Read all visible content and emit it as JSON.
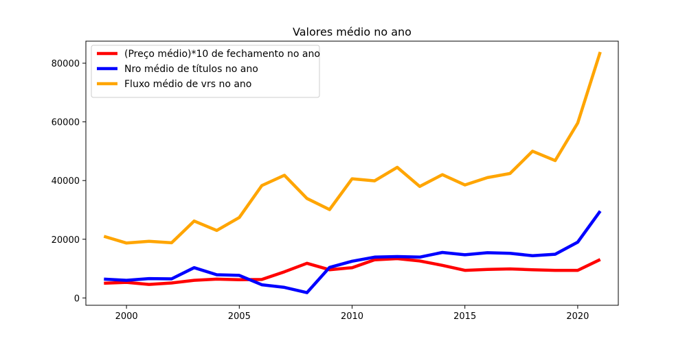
{
  "chart_data": {
    "type": "line",
    "title": "Valores médio no ano",
    "xlabel": "",
    "ylabel": "",
    "xlim": [
      1998.2,
      2021.8
    ],
    "ylim": [
      -2500,
      87500
    ],
    "x_ticks": [
      2000,
      2005,
      2010,
      2015,
      2020
    ],
    "y_ticks": [
      0,
      20000,
      40000,
      60000,
      80000
    ],
    "grid": false,
    "legend_position": "top-left",
    "x": [
      1999,
      2000,
      2001,
      2002,
      2003,
      2004,
      2005,
      2006,
      2007,
      2008,
      2009,
      2010,
      2011,
      2012,
      2013,
      2014,
      2015,
      2016,
      2017,
      2018,
      2019,
      2020,
      2021
    ],
    "series": [
      {
        "name": "(Preço médio)*10 de fechamento no ano",
        "color": "#ff0000",
        "values": [
          5000,
          5300,
          4600,
          5100,
          6000,
          6400,
          6200,
          6300,
          8900,
          11800,
          9600,
          10300,
          13000,
          13400,
          12600,
          11100,
          9400,
          9700,
          9900,
          9600,
          9400,
          9400,
          13100
        ]
      },
      {
        "name": "Nro médio de títulos no ano",
        "color": "#0000ff",
        "values": [
          6400,
          6000,
          6600,
          6500,
          10300,
          7900,
          7700,
          4500,
          3600,
          1800,
          10400,
          12500,
          13900,
          14100,
          13900,
          15500,
          14700,
          15400,
          15200,
          14400,
          14900,
          19000,
          29600
        ]
      },
      {
        "name": "Fluxo médio de vrs no ano",
        "color": "#ffa500",
        "values": [
          21000,
          18700,
          19300,
          18800,
          26200,
          23000,
          27400,
          38300,
          41800,
          33900,
          30100,
          40600,
          39900,
          44500,
          38000,
          42000,
          38500,
          41000,
          42400,
          50000,
          46800,
          59600,
          83800
        ]
      }
    ]
  }
}
